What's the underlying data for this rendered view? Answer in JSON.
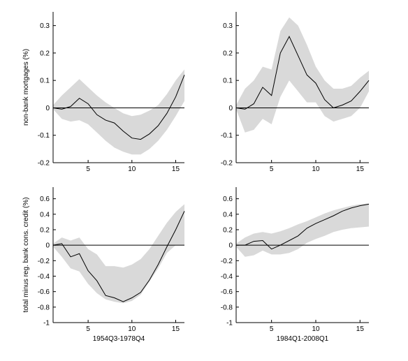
{
  "chart_data": [
    {
      "type": "line",
      "panel": "top-left",
      "title": "",
      "xlabel": "",
      "ylabel": "non-bank mortgages (%)",
      "xlim": [
        1,
        16
      ],
      "ylim": [
        -0.2,
        0.35
      ],
      "xticks": [
        "5",
        "10",
        "15"
      ],
      "yticks": [
        "-0.2",
        "-0.1",
        "0",
        "0.1",
        "0.2",
        "0.3"
      ],
      "zero_line": true,
      "grid": false,
      "x": [
        1,
        2,
        3,
        4,
        5,
        6,
        7,
        8,
        9,
        10,
        11,
        12,
        13,
        14,
        15,
        16
      ],
      "series": [
        {
          "role": "point estimate",
          "color": "#000000",
          "values": [
            0,
            -0.005,
            0.005,
            0.035,
            0.015,
            -0.025,
            -0.045,
            -0.055,
            -0.085,
            -0.11,
            -0.115,
            -0.095,
            -0.065,
            -0.02,
            0.04,
            0.12
          ]
        },
        {
          "role": "band upper",
          "color": "#d9d9d9",
          "values": [
            0.01,
            0.045,
            0.075,
            0.105,
            0.075,
            0.045,
            0.02,
            0.0,
            -0.02,
            -0.03,
            -0.025,
            -0.01,
            0.01,
            0.05,
            0.1,
            0.14
          ]
        },
        {
          "role": "band lower",
          "color": "#d9d9d9",
          "values": [
            -0.005,
            -0.04,
            -0.05,
            -0.045,
            -0.06,
            -0.09,
            -0.12,
            -0.145,
            -0.16,
            -0.17,
            -0.17,
            -0.15,
            -0.12,
            -0.08,
            -0.03,
            0.025
          ]
        }
      ]
    },
    {
      "type": "line",
      "panel": "top-right",
      "title": "",
      "xlabel": "",
      "ylabel": "",
      "xlim": [
        1,
        16
      ],
      "ylim": [
        -0.2,
        0.35
      ],
      "xticks": [
        "5",
        "10",
        "15"
      ],
      "yticks": [
        "-0.2",
        "-0.1",
        "0",
        "0.1",
        "0.2",
        "0.3"
      ],
      "zero_line": true,
      "grid": false,
      "x": [
        1,
        2,
        3,
        4,
        5,
        6,
        7,
        8,
        9,
        10,
        11,
        12,
        13,
        14,
        15,
        16
      ],
      "series": [
        {
          "role": "point estimate",
          "color": "#000000",
          "values": [
            0,
            -0.005,
            0.015,
            0.075,
            0.045,
            0.2,
            0.26,
            0.19,
            0.12,
            0.09,
            0.03,
            0.0,
            0.01,
            0.025,
            0.06,
            0.1
          ]
        },
        {
          "role": "band upper",
          "color": "#d9d9d9",
          "values": [
            0.01,
            0.07,
            0.1,
            0.15,
            0.14,
            0.28,
            0.33,
            0.3,
            0.23,
            0.15,
            0.1,
            0.07,
            0.07,
            0.08,
            0.11,
            0.135
          ]
        },
        {
          "role": "band lower",
          "color": "#d9d9d9",
          "values": [
            -0.005,
            -0.09,
            -0.08,
            -0.04,
            -0.06,
            0.04,
            0.1,
            0.06,
            0.02,
            0.02,
            -0.03,
            -0.05,
            -0.04,
            -0.03,
            0.0,
            0.06
          ]
        }
      ]
    },
    {
      "type": "line",
      "panel": "bottom-left",
      "title": "",
      "xlabel": "1954Q3-1978Q4",
      "ylabel": "total minus reg. bank cons. credit (%)",
      "xlim": [
        1,
        16
      ],
      "ylim": [
        -1,
        0.75
      ],
      "xticks": [
        "5",
        "10",
        "15"
      ],
      "yticks": [
        "-1",
        "-0.8",
        "-0.6",
        "-0.4",
        "-0.2",
        "0",
        "0.2",
        "0.4",
        "0.6"
      ],
      "zero_line": true,
      "grid": false,
      "x": [
        1,
        2,
        3,
        4,
        5,
        6,
        7,
        8,
        9,
        10,
        11,
        12,
        13,
        14,
        15,
        16
      ],
      "series": [
        {
          "role": "point estimate",
          "color": "#000000",
          "values": [
            0,
            0.02,
            -0.15,
            -0.11,
            -0.33,
            -0.46,
            -0.65,
            -0.68,
            -0.73,
            -0.68,
            -0.61,
            -0.45,
            -0.25,
            -0.02,
            0.2,
            0.44
          ]
        },
        {
          "role": "band upper",
          "color": "#d9d9d9",
          "values": [
            0.02,
            0.1,
            0.06,
            0.1,
            -0.05,
            -0.12,
            -0.27,
            -0.27,
            -0.29,
            -0.25,
            -0.18,
            -0.05,
            0.12,
            0.29,
            0.43,
            0.53
          ]
        },
        {
          "role": "band lower",
          "color": "#d9d9d9",
          "values": [
            -0.02,
            -0.15,
            -0.3,
            -0.34,
            -0.5,
            -0.62,
            -0.7,
            -0.73,
            -0.75,
            -0.72,
            -0.64,
            -0.47,
            -0.3,
            -0.1,
            0.0,
            0.0
          ]
        }
      ]
    },
    {
      "type": "line",
      "panel": "bottom-right",
      "title": "",
      "xlabel": "1984Q1-2008Q1",
      "ylabel": "",
      "xlim": [
        1,
        16
      ],
      "ylim": [
        -1,
        0.75
      ],
      "xticks": [
        "5",
        "10",
        "15"
      ],
      "yticks": [
        "-1",
        "-0.8",
        "-0.6",
        "-0.4",
        "-0.2",
        "0",
        "0.2",
        "0.4",
        "0.6"
      ],
      "zero_line": true,
      "grid": false,
      "x": [
        1,
        2,
        3,
        4,
        5,
        6,
        7,
        8,
        9,
        10,
        11,
        12,
        13,
        14,
        15,
        16
      ],
      "series": [
        {
          "role": "point estimate",
          "color": "#000000",
          "values": [
            0,
            0.0,
            0.05,
            0.06,
            -0.05,
            0.0,
            0.06,
            0.12,
            0.22,
            0.28,
            0.33,
            0.38,
            0.44,
            0.48,
            0.51,
            0.53
          ]
        },
        {
          "role": "band upper",
          "color": "#d9d9d9",
          "values": [
            0.02,
            0.1,
            0.15,
            0.17,
            0.15,
            0.18,
            0.22,
            0.27,
            0.31,
            0.36,
            0.41,
            0.45,
            0.48,
            0.51,
            0.53,
            0.54
          ]
        },
        {
          "role": "band lower",
          "color": "#d9d9d9",
          "values": [
            -0.02,
            -0.15,
            -0.13,
            -0.07,
            -0.12,
            -0.12,
            -0.1,
            -0.05,
            0.03,
            0.08,
            0.12,
            0.17,
            0.2,
            0.22,
            0.23,
            0.24
          ]
        }
      ]
    }
  ]
}
